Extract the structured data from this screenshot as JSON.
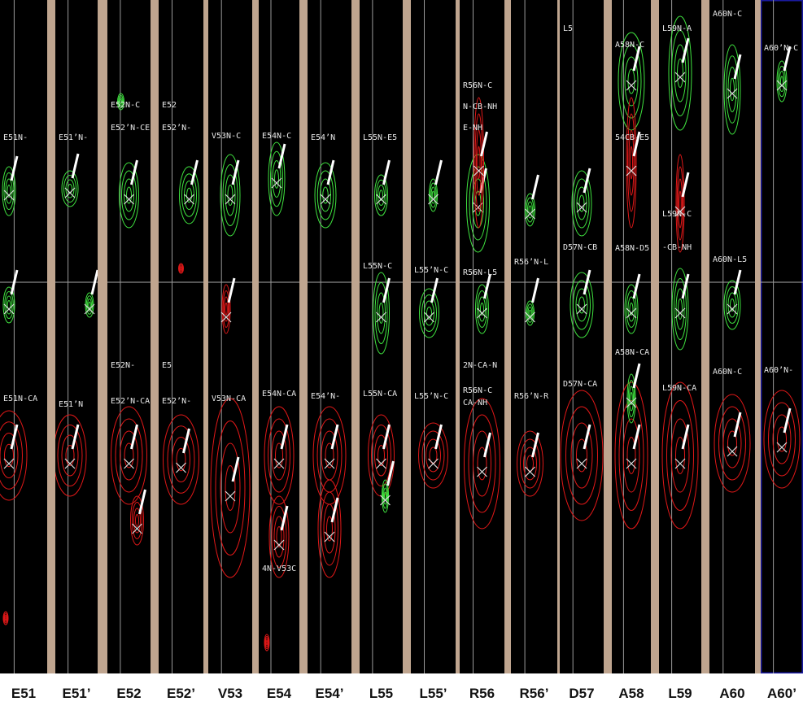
{
  "strips": [
    {
      "label": "E51",
      "peaks": [
        "E51N-",
        "E51N-CA"
      ]
    },
    {
      "label": "E51’",
      "peaks": [
        "E51’N-",
        "E51’N"
      ]
    },
    {
      "label": "E52",
      "peaks": [
        "E52N-C",
        "E52’N-CE",
        "E52N-",
        "E52’N-CA-"
      ]
    },
    {
      "label": "E52’",
      "peaks": [
        "E52",
        "E52’N-",
        "E5",
        "E52’N-"
      ]
    },
    {
      "label": "V53",
      "peaks": [
        "V53N-C",
        "V53N-CA"
      ]
    },
    {
      "label": "E54",
      "peaks": [
        "E54N-C",
        "E54N-CA",
        "4N-V53C"
      ]
    },
    {
      "label": "E54’",
      "peaks": [
        "E54’N",
        "E54’N-"
      ]
    },
    {
      "label": "L55",
      "peaks": [
        "L55N-E5",
        "L55N-C",
        "L55N-CA"
      ]
    },
    {
      "label": "L55’",
      "peaks": [
        "L55’N-C",
        "L55’N-C"
      ]
    },
    {
      "label": "R56",
      "peaks": [
        "R56N-C",
        "N-CB-NH",
        "E-NH",
        "R56N-L5",
        "2N-CA-N",
        "R56N-C",
        "CA-NH"
      ]
    },
    {
      "label": "R56’",
      "peaks": [
        "R56’N-L",
        "R56’N-R"
      ]
    },
    {
      "label": "D57",
      "peaks": [
        "L5",
        "D57N-CB",
        "D57N-CA"
      ]
    },
    {
      "label": "A58",
      "peaks": [
        "A58N-C",
        "54CB-E5",
        "A58N-D5",
        "A58N-CA"
      ]
    },
    {
      "label": "L59",
      "peaks": [
        "L59N-A",
        "L59N-C",
        "-CB-NH",
        "L59N-CA"
      ]
    },
    {
      "label": "A60",
      "peaks": [
        "A60N-C",
        "A60N-L5",
        "A60N-C"
      ]
    },
    {
      "label": "A60’",
      "peaks": [
        "A60’N-C",
        "A60’N-"
      ]
    }
  ]
}
